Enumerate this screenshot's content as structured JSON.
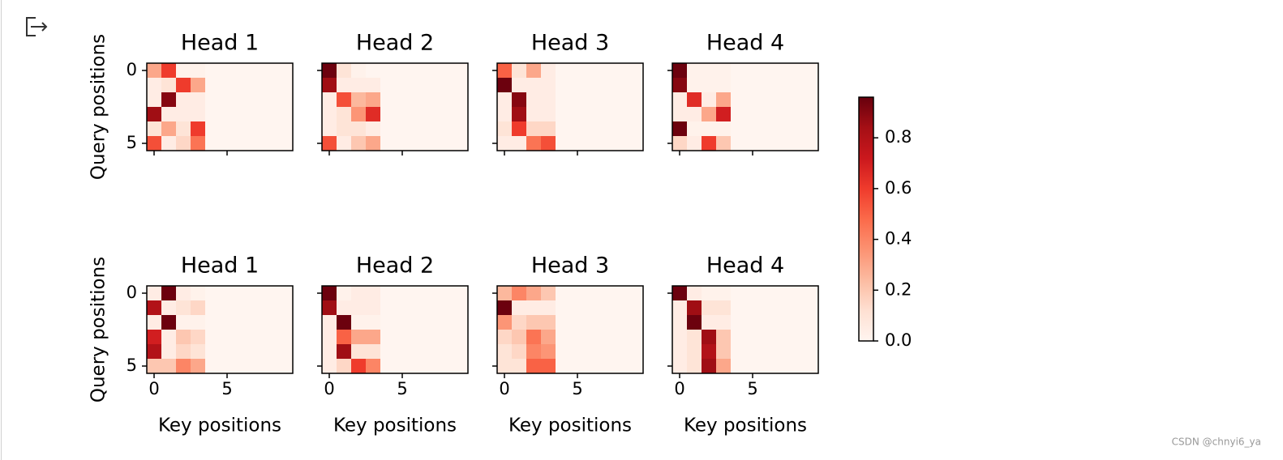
{
  "chart_data": [
    {
      "type": "heatmap",
      "title": "Head 1",
      "ylabel": "Query positions",
      "xlim": [
        -0.5,
        9.5
      ],
      "ylim": [
        5.5,
        -0.5
      ],
      "xticks": [
        0,
        5
      ],
      "yticks": [
        0,
        5
      ],
      "values": [
        [
          0.3,
          0.6,
          0.02,
          0.02,
          0,
          0,
          0,
          0,
          0,
          0
        ],
        [
          0.05,
          0.1,
          0.6,
          0.3,
          0,
          0,
          0,
          0,
          0,
          0
        ],
        [
          0.05,
          0.9,
          0.05,
          0.05,
          0,
          0,
          0,
          0,
          0,
          0
        ],
        [
          0.85,
          0.05,
          0.05,
          0.05,
          0,
          0,
          0,
          0,
          0,
          0
        ],
        [
          0.1,
          0.3,
          0.1,
          0.6,
          0,
          0,
          0,
          0,
          0,
          0
        ],
        [
          0.55,
          0.05,
          0.15,
          0.45,
          0,
          0,
          0,
          0,
          0,
          0
        ]
      ]
    },
    {
      "type": "heatmap",
      "title": "Head 2",
      "xlim": [
        -0.5,
        9.5
      ],
      "ylim": [
        5.5,
        -0.5
      ],
      "xticks": [
        0,
        5
      ],
      "yticks": [
        0,
        5
      ],
      "values": [
        [
          0.95,
          0.1,
          0.02,
          0,
          0,
          0,
          0,
          0,
          0,
          0
        ],
        [
          0.85,
          0.05,
          0.05,
          0.05,
          0,
          0,
          0,
          0,
          0,
          0
        ],
        [
          0.05,
          0.55,
          0.25,
          0.3,
          0,
          0,
          0,
          0,
          0,
          0
        ],
        [
          0.05,
          0.1,
          0.35,
          0.65,
          0,
          0,
          0,
          0,
          0,
          0
        ],
        [
          0.05,
          0.1,
          0.1,
          0.05,
          0,
          0,
          0,
          0,
          0,
          0
        ],
        [
          0.55,
          0.05,
          0.2,
          0.3,
          0,
          0,
          0,
          0,
          0,
          0
        ]
      ]
    },
    {
      "type": "heatmap",
      "title": "Head 3",
      "xlim": [
        -0.5,
        9.5
      ],
      "ylim": [
        5.5,
        -0.5
      ],
      "xticks": [
        0,
        5
      ],
      "yticks": [
        0,
        5
      ],
      "values": [
        [
          0.5,
          0.1,
          0.3,
          0.05,
          0,
          0,
          0,
          0,
          0,
          0
        ],
        [
          0.95,
          0.05,
          0.05,
          0.05,
          0,
          0,
          0,
          0,
          0,
          0
        ],
        [
          0.05,
          0.9,
          0.05,
          0.05,
          0,
          0,
          0,
          0,
          0,
          0
        ],
        [
          0.05,
          0.85,
          0.05,
          0.05,
          0,
          0,
          0,
          0,
          0,
          0
        ],
        [
          0.1,
          0.6,
          0.15,
          0.15,
          0,
          0,
          0,
          0,
          0,
          0
        ],
        [
          0.05,
          0.05,
          0.45,
          0.55,
          0,
          0,
          0,
          0,
          0,
          0
        ]
      ]
    },
    {
      "type": "heatmap",
      "title": "Head 4",
      "xlim": [
        -0.5,
        9.5
      ],
      "ylim": [
        5.5,
        -0.5
      ],
      "xticks": [
        0,
        5
      ],
      "yticks": [
        0,
        5
      ],
      "values": [
        [
          0.95,
          0.02,
          0.02,
          0.02,
          0,
          0,
          0,
          0,
          0,
          0
        ],
        [
          0.9,
          0.02,
          0.02,
          0.02,
          0,
          0,
          0,
          0,
          0,
          0
        ],
        [
          0.05,
          0.65,
          0.05,
          0.3,
          0,
          0,
          0,
          0,
          0,
          0
        ],
        [
          0.05,
          0.05,
          0.3,
          0.7,
          0,
          0,
          0,
          0,
          0,
          0
        ],
        [
          0.95,
          0.02,
          0.02,
          0.02,
          0,
          0,
          0,
          0,
          0,
          0
        ],
        [
          0.15,
          0.05,
          0.6,
          0.2,
          0,
          0,
          0,
          0,
          0,
          0
        ]
      ]
    },
    {
      "type": "heatmap",
      "title": "Head 1",
      "ylabel": "Query positions",
      "xlabel": "Key positions",
      "xlim": [
        -0.5,
        9.5
      ],
      "ylim": [
        5.5,
        -0.5
      ],
      "xticks": [
        0,
        5
      ],
      "yticks": [
        0,
        5
      ],
      "values": [
        [
          0.05,
          0.95,
          0.05,
          0.02,
          0,
          0,
          0,
          0,
          0,
          0
        ],
        [
          0.8,
          0.05,
          0.1,
          0.15,
          0,
          0,
          0,
          0,
          0,
          0
        ],
        [
          0.05,
          0.95,
          0.02,
          0.02,
          0,
          0,
          0,
          0,
          0,
          0
        ],
        [
          0.7,
          0.05,
          0.2,
          0.15,
          0,
          0,
          0,
          0,
          0,
          0
        ],
        [
          0.8,
          0.05,
          0.15,
          0.1,
          0,
          0,
          0,
          0,
          0,
          0
        ],
        [
          0.2,
          0.2,
          0.4,
          0.3,
          0,
          0,
          0,
          0,
          0,
          0
        ]
      ]
    },
    {
      "type": "heatmap",
      "title": "Head 2",
      "xlabel": "Key positions",
      "xlim": [
        -0.5,
        9.5
      ],
      "ylim": [
        5.5,
        -0.5
      ],
      "xticks": [
        0,
        5
      ],
      "yticks": [
        0,
        5
      ],
      "values": [
        [
          0.95,
          0.02,
          0.05,
          0.05,
          0,
          0,
          0,
          0,
          0,
          0
        ],
        [
          0.85,
          0.05,
          0.05,
          0.05,
          0,
          0,
          0,
          0,
          0,
          0
        ],
        [
          0.05,
          0.95,
          0.02,
          0.02,
          0,
          0,
          0,
          0,
          0,
          0
        ],
        [
          0.05,
          0.5,
          0.3,
          0.3,
          0,
          0,
          0,
          0,
          0,
          0
        ],
        [
          0.05,
          0.85,
          0.1,
          0.1,
          0,
          0,
          0,
          0,
          0,
          0
        ],
        [
          0.05,
          0.15,
          0.6,
          0.4,
          0,
          0,
          0,
          0,
          0,
          0
        ]
      ]
    },
    {
      "type": "heatmap",
      "title": "Head 3",
      "xlabel": "Key positions",
      "xlim": [
        -0.5,
        9.5
      ],
      "ylim": [
        5.5,
        -0.5
      ],
      "xticks": [
        0,
        5
      ],
      "yticks": [
        0,
        5
      ],
      "values": [
        [
          0.25,
          0.4,
          0.3,
          0.2,
          0,
          0,
          0,
          0,
          0,
          0
        ],
        [
          0.95,
          0.05,
          0.05,
          0.05,
          0,
          0,
          0,
          0,
          0,
          0
        ],
        [
          0.35,
          0.15,
          0.2,
          0.2,
          0,
          0,
          0,
          0,
          0,
          0
        ],
        [
          0.15,
          0.2,
          0.45,
          0.3,
          0,
          0,
          0,
          0,
          0,
          0
        ],
        [
          0.1,
          0.15,
          0.4,
          0.35,
          0,
          0,
          0,
          0,
          0,
          0
        ],
        [
          0.1,
          0.1,
          0.5,
          0.5,
          0,
          0,
          0,
          0,
          0,
          0
        ]
      ]
    },
    {
      "type": "heatmap",
      "title": "Head 4",
      "xlabel": "Key positions",
      "xlim": [
        -0.5,
        9.5
      ],
      "ylim": [
        5.5,
        -0.5
      ],
      "xticks": [
        0,
        5
      ],
      "yticks": [
        0,
        5
      ],
      "values": [
        [
          0.95,
          0.05,
          0.02,
          0.02,
          0,
          0,
          0,
          0,
          0,
          0
        ],
        [
          0.05,
          0.85,
          0.1,
          0.1,
          0,
          0,
          0,
          0,
          0,
          0
        ],
        [
          0.05,
          0.95,
          0.05,
          0.05,
          0,
          0,
          0,
          0,
          0,
          0
        ],
        [
          0.05,
          0.1,
          0.85,
          0.2,
          0,
          0,
          0,
          0,
          0,
          0
        ],
        [
          0.05,
          0.1,
          0.8,
          0.2,
          0,
          0,
          0,
          0,
          0,
          0
        ],
        [
          0.05,
          0.1,
          0.85,
          0.3,
          0,
          0,
          0,
          0,
          0,
          0
        ]
      ]
    }
  ],
  "colorbar": {
    "colormap": "Reds",
    "clim": [
      0,
      0.96
    ],
    "ticks": [
      {
        "value": 0,
        "label": "0.0"
      },
      {
        "value": 0.2,
        "label": "0.2"
      },
      {
        "value": 0.4,
        "label": "0.4"
      },
      {
        "value": 0.6,
        "label": "0.6"
      },
      {
        "value": 0.8,
        "label": "0.8"
      }
    ]
  },
  "watermark": "CSDN @chnyi6_ya"
}
